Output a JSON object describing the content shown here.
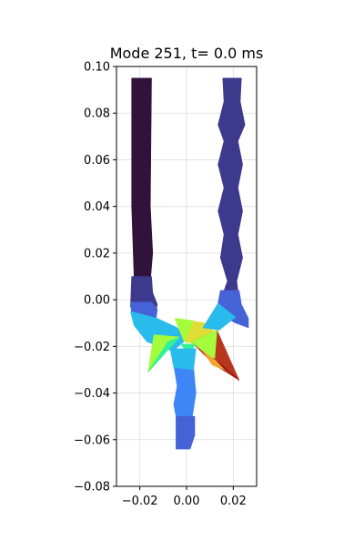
{
  "chart_data": {
    "type": "mesh",
    "title": "Mode 251, t=  0.0 ms",
    "xlabel": "",
    "ylabel": "",
    "xlim": [
      -0.03,
      0.03
    ],
    "ylim": [
      -0.08,
      0.1
    ],
    "xticks": [
      -0.02,
      0.0,
      0.02
    ],
    "xtick_labels": [
      "−0.02",
      "0.00",
      "0.02"
    ],
    "yticks": [
      -0.08,
      -0.06,
      -0.04,
      -0.02,
      0.0,
      0.02,
      0.04,
      0.06,
      0.08,
      0.1
    ],
    "ytick_labels": [
      "−0.08",
      "−0.06",
      "−0.04",
      "−0.02",
      "0.00",
      "0.02",
      "0.04",
      "0.06",
      "0.08",
      "0.10"
    ],
    "grid": true,
    "colormap": "turbo",
    "palette": [
      "#30123b",
      "#3d3a8e",
      "#4662d7",
      "#3e86f5",
      "#28bbec",
      "#32f298",
      "#a4fc3c",
      "#e1dd37",
      "#f3a534",
      "#b8361e",
      "#7a0403"
    ],
    "regions": [
      {
        "name": "left-tube",
        "polygon": [
          [
            -0.0235,
            0.095
          ],
          [
            -0.015,
            0.095
          ],
          [
            -0.0155,
            0.04
          ],
          [
            -0.0145,
            0.02
          ],
          [
            -0.0155,
            0.008
          ],
          [
            -0.015,
            -0.001
          ],
          [
            -0.0175,
            -0.004
          ],
          [
            -0.024,
            -0.003
          ],
          [
            -0.0225,
            0.01
          ],
          [
            -0.0235,
            0.04
          ]
        ],
        "color": "#30123b"
      },
      {
        "name": "left-tube-lower",
        "polygon": [
          [
            -0.0235,
            0.01
          ],
          [
            -0.015,
            0.01
          ],
          [
            -0.0145,
            0.003
          ],
          [
            -0.0125,
            -0.002
          ],
          [
            -0.0135,
            -0.006
          ],
          [
            -0.018,
            -0.007
          ],
          [
            -0.021,
            -0.006
          ],
          [
            -0.024,
            -0.003
          ]
        ],
        "color": "#3d3a8e"
      },
      {
        "name": "left-tube-base",
        "polygon": [
          [
            -0.024,
            -0.001
          ],
          [
            -0.015,
            -0.001
          ],
          [
            -0.0125,
            -0.004
          ],
          [
            -0.013,
            -0.008
          ],
          [
            -0.017,
            -0.01
          ],
          [
            -0.022,
            -0.009
          ],
          [
            -0.0235,
            -0.006
          ]
        ],
        "color": "#4662d7"
      },
      {
        "name": "right-tube",
        "polygon": [
          [
            0.0155,
            0.095
          ],
          [
            0.0235,
            0.095
          ],
          [
            0.023,
            0.085
          ],
          [
            0.025,
            0.075
          ],
          [
            0.022,
            0.068
          ],
          [
            0.024,
            0.058
          ],
          [
            0.022,
            0.048
          ],
          [
            0.024,
            0.038
          ],
          [
            0.022,
            0.028
          ],
          [
            0.024,
            0.018
          ],
          [
            0.0215,
            0.008
          ],
          [
            0.0225,
            -0.001
          ],
          [
            0.0185,
            -0.002
          ],
          [
            0.0145,
            -0.0005
          ],
          [
            0.0175,
            0.008
          ],
          [
            0.0145,
            0.018
          ],
          [
            0.016,
            0.028
          ],
          [
            0.0135,
            0.038
          ],
          [
            0.016,
            0.048
          ],
          [
            0.0135,
            0.058
          ],
          [
            0.016,
            0.068
          ],
          [
            0.0135,
            0.075
          ],
          [
            0.016,
            0.085
          ]
        ],
        "color": "#3d3a8e"
      },
      {
        "name": "right-tube-base",
        "polygon": [
          [
            0.0145,
            0.004
          ],
          [
            0.0225,
            0.004
          ],
          [
            0.0235,
            -0.002
          ],
          [
            0.0265,
            -0.008
          ],
          [
            0.0265,
            -0.012
          ],
          [
            0.021,
            -0.01
          ],
          [
            0.0155,
            -0.007
          ],
          [
            0.013,
            -0.004
          ]
        ],
        "color": "#4662d7"
      },
      {
        "name": "stem",
        "polygon": [
          [
            -0.0055,
            -0.028
          ],
          [
            0.003,
            -0.029
          ],
          [
            0.004,
            -0.04
          ],
          [
            0.0025,
            -0.05
          ],
          [
            0.0035,
            -0.058
          ],
          [
            0.0015,
            -0.064
          ],
          [
            -0.0045,
            -0.064
          ],
          [
            -0.0035,
            -0.055
          ],
          [
            -0.0055,
            -0.045
          ],
          [
            -0.004,
            -0.037
          ]
        ],
        "color": "#3e86f5"
      },
      {
        "name": "stem-lower",
        "polygon": [
          [
            -0.0045,
            -0.05
          ],
          [
            0.0035,
            -0.05
          ],
          [
            0.0035,
            -0.058
          ],
          [
            0.0015,
            -0.064
          ],
          [
            -0.0045,
            -0.064
          ]
        ],
        "color": "#4662d7"
      },
      {
        "name": "junction-left-arm",
        "polygon": [
          [
            -0.024,
            -0.005
          ],
          [
            -0.0125,
            -0.008
          ],
          [
            -0.004,
            -0.012
          ],
          [
            0.0,
            -0.017
          ],
          [
            -0.006,
            -0.022
          ],
          [
            -0.017,
            -0.018
          ],
          [
            -0.0225,
            -0.011
          ]
        ],
        "color": "#28bbec"
      },
      {
        "name": "junction-left-spike",
        "polygon": [
          [
            -0.014,
            -0.015
          ],
          [
            -0.003,
            -0.016
          ],
          [
            -0.0165,
            -0.031
          ]
        ],
        "color": "#a4fc3c"
      },
      {
        "name": "junction-left-spike-shade",
        "polygon": [
          [
            -0.008,
            -0.018
          ],
          [
            -0.003,
            -0.016
          ],
          [
            -0.0165,
            -0.031
          ]
        ],
        "color": "#32f298"
      },
      {
        "name": "junction-top-fan",
        "polygon": [
          [
            -0.005,
            -0.008
          ],
          [
            0.008,
            -0.01
          ],
          [
            0.013,
            -0.015
          ],
          [
            0.006,
            -0.019
          ],
          [
            -0.001,
            -0.018
          ]
        ],
        "color": "#e1dd37"
      },
      {
        "name": "junction-top-fan-shade",
        "polygon": [
          [
            -0.005,
            -0.008
          ],
          [
            0.003,
            -0.009
          ],
          [
            -0.001,
            -0.018
          ]
        ],
        "color": "#a4fc3c"
      },
      {
        "name": "junction-right-arm",
        "polygon": [
          [
            0.0135,
            -0.0015
          ],
          [
            0.021,
            -0.0075
          ],
          [
            0.014,
            -0.013
          ],
          [
            0.007,
            -0.012
          ]
        ],
        "color": "#28bbec"
      },
      {
        "name": "junction-right-spike",
        "polygon": [
          [
            0.002,
            -0.018
          ],
          [
            0.013,
            -0.013
          ],
          [
            0.0225,
            -0.0345
          ],
          [
            0.012,
            -0.028
          ]
        ],
        "color": "#b8361e"
      },
      {
        "name": "junction-right-spike-light",
        "polygon": [
          [
            0.002,
            -0.018
          ],
          [
            0.013,
            -0.013
          ],
          [
            0.012,
            -0.026
          ]
        ],
        "color": "#a4fc3c"
      },
      {
        "name": "junction-right-spike-mid",
        "polygon": [
          [
            0.0115,
            -0.025
          ],
          [
            0.0225,
            -0.0345
          ],
          [
            0.016,
            -0.029
          ]
        ],
        "color": "#7a0403"
      },
      {
        "name": "junction-lower-fan",
        "polygon": [
          [
            -0.0025,
            -0.019
          ],
          [
            0.0035,
            -0.019
          ],
          [
            0.0015,
            -0.024
          ]
        ],
        "color": "#32f298"
      },
      {
        "name": "junction-core",
        "polygon": [
          [
            -0.007,
            -0.021
          ],
          [
            0.004,
            -0.021
          ],
          [
            0.003,
            -0.03
          ],
          [
            -0.0055,
            -0.029
          ]
        ],
        "color": "#28bbec"
      },
      {
        "name": "junction-right-spike-warm",
        "polygon": [
          [
            0.007,
            -0.022
          ],
          [
            0.0125,
            -0.026
          ],
          [
            0.016,
            -0.03
          ],
          [
            0.011,
            -0.028
          ]
        ],
        "color": "#f3a534"
      }
    ]
  }
}
